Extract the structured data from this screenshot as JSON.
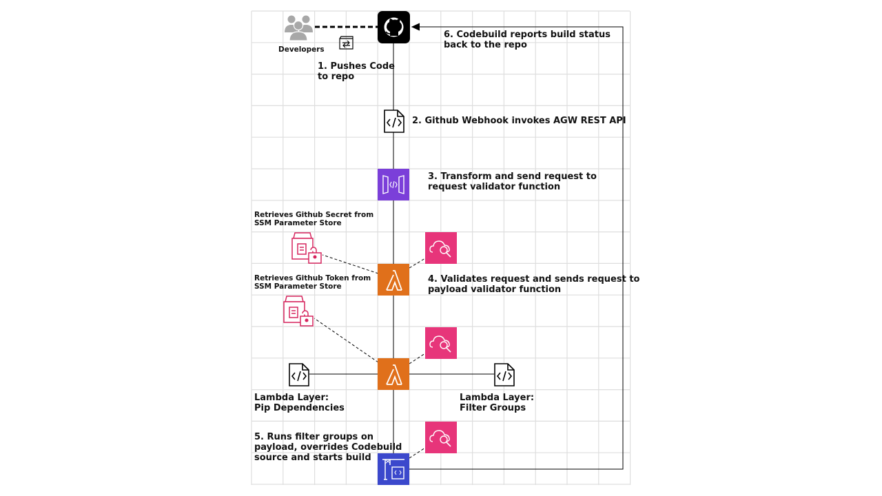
{
  "diagram": {
    "labels": {
      "developers": "Developers",
      "step1": "1. Pushes Code\nto repo",
      "step2": "2. Github Webhook invokes AGW REST API",
      "step3": "3. Transform and send request to\nrequest validator function",
      "step4": "4. Validates request and sends request to\npayload validator function",
      "step5": "5. Runs filter groups on\npayload, overrides Codebuild\nsource and starts build",
      "step6": "6. Codebuild reports build status\nback to the repo",
      "ssm_secret": "Retrieves Github Secret from\nSSM Parameter Store",
      "ssm_token": "Retrieves Github Token from\nSSM Parameter Store",
      "layer_pip": "Lambda Layer:\nPip Dependencies",
      "layer_filter": "Lambda Layer:\nFilter Groups"
    },
    "icons": {
      "users": "users-icon",
      "git_commit": "git-commit-icon",
      "github": "github-icon",
      "webhook_doc": "code-document-icon",
      "api_gateway": "api-gateway-icon",
      "lambda": "lambda-icon",
      "cloudwatch": "cloudwatch-logs-icon",
      "ssm": "ssm-parameter-store-icon",
      "codebuild": "codebuild-icon",
      "layer_doc": "code-document-icon"
    },
    "colors": {
      "grid": "#dedede",
      "connector": "#000000",
      "github_bg": "#000000",
      "api_gateway": "#7b3fd9",
      "lambda": "#e0701b",
      "cloudwatch": "#e7357a",
      "ssm": "#d6245d",
      "codebuild": "#3b48cc",
      "users": "#a8a8a8"
    }
  }
}
